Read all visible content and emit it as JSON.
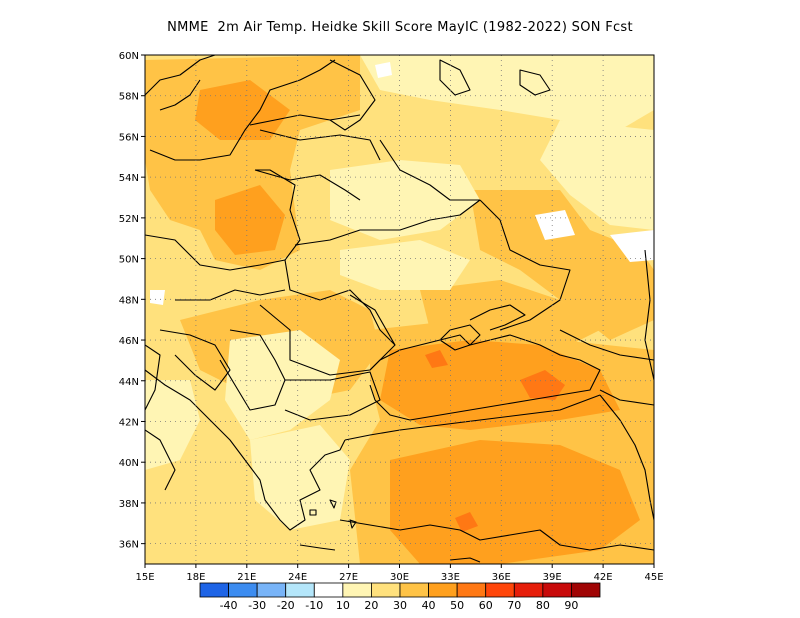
{
  "title": "NMME  2m Air Temp. Heidke Skill Score MayIC (1982-2022) SON Fcst",
  "map": {
    "lon_range": [
      15,
      45
    ],
    "lat_range": [
      35,
      60
    ],
    "lon_ticks": [
      {
        "value": 15,
        "label": "15E"
      },
      {
        "value": 18,
        "label": "18E"
      },
      {
        "value": 21,
        "label": "21E"
      },
      {
        "value": 24,
        "label": "24E"
      },
      {
        "value": 27,
        "label": "27E"
      },
      {
        "value": 30,
        "label": "30E"
      },
      {
        "value": 33,
        "label": "33E"
      },
      {
        "value": 36,
        "label": "36E"
      },
      {
        "value": 39,
        "label": "39E"
      },
      {
        "value": 42,
        "label": "42E"
      },
      {
        "value": 45,
        "label": "45E"
      }
    ],
    "lat_ticks": [
      {
        "value": 36,
        "label": "36N"
      },
      {
        "value": 38,
        "label": "38N"
      },
      {
        "value": 40,
        "label": "40N"
      },
      {
        "value": 42,
        "label": "42N"
      },
      {
        "value": 44,
        "label": "44N"
      },
      {
        "value": 46,
        "label": "46N"
      },
      {
        "value": 48,
        "label": "48N"
      },
      {
        "value": 50,
        "label": "50N"
      },
      {
        "value": 52,
        "label": "52N"
      },
      {
        "value": 54,
        "label": "54N"
      },
      {
        "value": 56,
        "label": "56N"
      },
      {
        "value": 58,
        "label": "58N"
      },
      {
        "value": 60,
        "label": "60N"
      }
    ],
    "grid": true
  },
  "colorbar": {
    "colors": [
      "#1e64e6",
      "#3c8cf0",
      "#78b4f8",
      "#b4e6fa",
      "#ffffff",
      "#fff5b4",
      "#ffe17d",
      "#ffc346",
      "#ffa01e",
      "#ff7814",
      "#ff460a",
      "#e61e0a",
      "#c80a0a",
      "#a00505"
    ],
    "labels": [
      "-40",
      "-30",
      "-20",
      "-10",
      "10",
      "20",
      "30",
      "40",
      "50",
      "60",
      "70",
      "80",
      "90"
    ]
  },
  "field_colors": {
    "lt10": "#ffffff",
    "c10_20": "#fff5b4",
    "c20_30": "#ffe17d",
    "c30_40": "#ffc346",
    "c40_50": "#ffa01e",
    "c50_60": "#ff7814"
  }
}
